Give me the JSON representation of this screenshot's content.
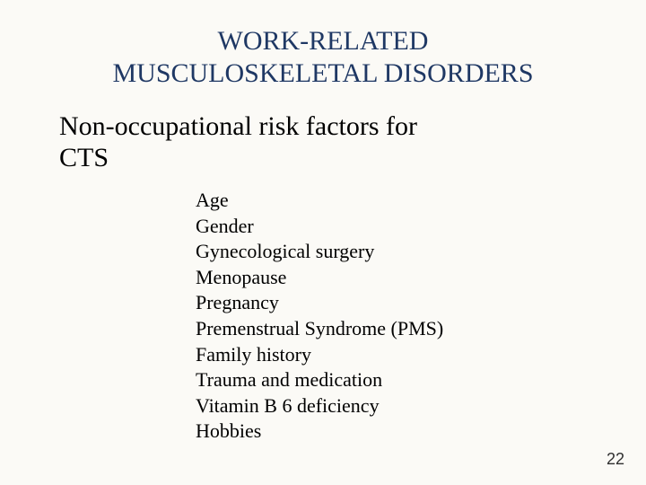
{
  "background_color": "#fbfaf6",
  "slide": {
    "title": {
      "line1": "WORK-RELATED",
      "line2": "MUSCULOSKELETAL DISORDERS",
      "color": "#1f3864",
      "fontsize": 30,
      "align": "center"
    },
    "subtitle": {
      "line1": "Non‑occupational risk factors for",
      "line2": "CTS",
      "color": "#000000",
      "fontsize": 30
    },
    "list": {
      "items": [
        "Age",
        "Gender",
        "Gynecological surgery",
        "Menopause",
        "Pregnancy",
        "Premenstrual Syndrome (PMS)",
        "Family history",
        "Trauma and medication",
        "Vitamin B 6 deficiency",
        "Hobbies"
      ],
      "fontsize": 22,
      "color": "#000000"
    },
    "page_number": "22"
  }
}
